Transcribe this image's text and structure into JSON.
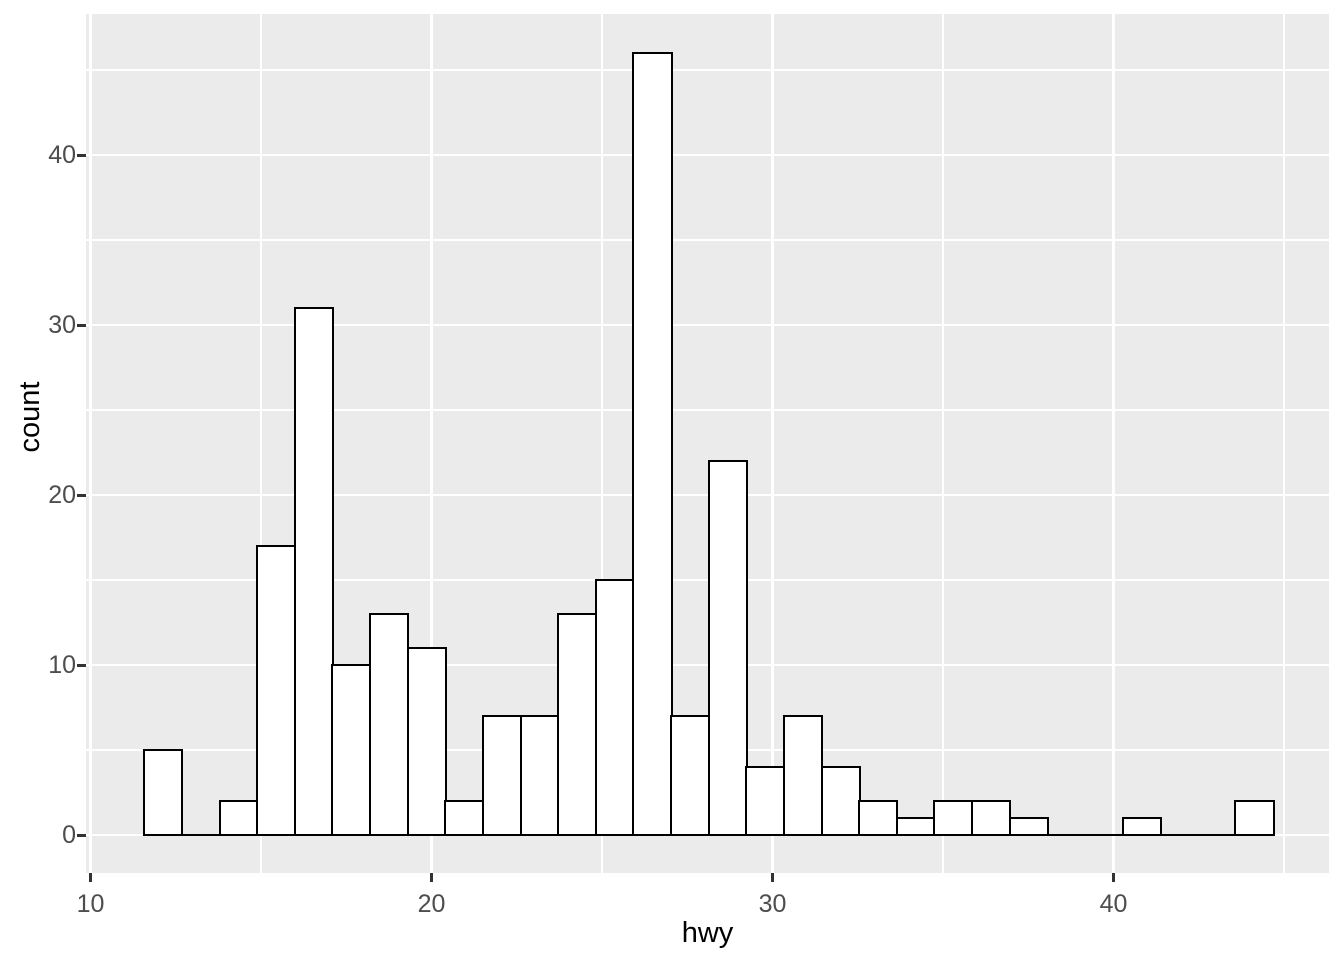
{
  "chart_data": {
    "type": "bar",
    "subtype": "histogram",
    "title": "",
    "xlabel": "hwy",
    "ylabel": "count",
    "x_ticks": [
      10,
      20,
      30,
      40
    ],
    "y_ticks": [
      0,
      10,
      20,
      30,
      40
    ],
    "x_minor_gridlines": [
      15,
      25,
      35,
      45
    ],
    "y_minor_gridlines": [
      5,
      15,
      25,
      35,
      45
    ],
    "xlim": [
      9.93,
      46.35
    ],
    "ylim": [
      -2.3,
      48.3
    ],
    "grid": "on",
    "legend": "none",
    "total_count": 234,
    "bins": {
      "n_bins": 30,
      "start": 11.586,
      "binwidth": 1.1034,
      "counts": [
        5,
        0,
        2,
        17,
        31,
        10,
        13,
        11,
        2,
        7,
        7,
        13,
        15,
        46,
        7,
        22,
        4,
        7,
        4,
        2,
        1,
        2,
        2,
        1,
        0,
        0,
        1,
        0,
        0,
        2
      ]
    },
    "bars": [
      {
        "x0": 11.59,
        "x1": 12.69,
        "count": 5
      },
      {
        "x0": 12.69,
        "x1": 13.79,
        "count": 0
      },
      {
        "x0": 13.79,
        "x1": 14.9,
        "count": 2
      },
      {
        "x0": 14.9,
        "x1": 16.0,
        "count": 17
      },
      {
        "x0": 16.0,
        "x1": 17.1,
        "count": 31
      },
      {
        "x0": 17.1,
        "x1": 18.21,
        "count": 10
      },
      {
        "x0": 18.21,
        "x1": 19.31,
        "count": 13
      },
      {
        "x0": 19.31,
        "x1": 20.41,
        "count": 11
      },
      {
        "x0": 20.41,
        "x1": 21.52,
        "count": 2
      },
      {
        "x0": 21.52,
        "x1": 22.62,
        "count": 7
      },
      {
        "x0": 22.62,
        "x1": 23.72,
        "count": 7
      },
      {
        "x0": 23.72,
        "x1": 24.83,
        "count": 13
      },
      {
        "x0": 24.83,
        "x1": 25.93,
        "count": 15
      },
      {
        "x0": 25.93,
        "x1": 27.03,
        "count": 46
      },
      {
        "x0": 27.03,
        "x1": 28.14,
        "count": 7
      },
      {
        "x0": 28.14,
        "x1": 29.24,
        "count": 22
      },
      {
        "x0": 29.24,
        "x1": 30.34,
        "count": 4
      },
      {
        "x0": 30.34,
        "x1": 31.45,
        "count": 7
      },
      {
        "x0": 31.45,
        "x1": 32.55,
        "count": 4
      },
      {
        "x0": 32.55,
        "x1": 33.66,
        "count": 2
      },
      {
        "x0": 33.66,
        "x1": 34.76,
        "count": 1
      },
      {
        "x0": 34.76,
        "x1": 35.86,
        "count": 2
      },
      {
        "x0": 35.86,
        "x1": 36.97,
        "count": 2
      },
      {
        "x0": 36.97,
        "x1": 38.07,
        "count": 1
      },
      {
        "x0": 38.07,
        "x1": 39.17,
        "count": 0
      },
      {
        "x0": 39.17,
        "x1": 40.28,
        "count": 0
      },
      {
        "x0": 40.28,
        "x1": 41.38,
        "count": 1
      },
      {
        "x0": 41.38,
        "x1": 42.48,
        "count": 0
      },
      {
        "x0": 42.48,
        "x1": 43.59,
        "count": 0
      },
      {
        "x0": 43.59,
        "x1": 44.69,
        "count": 2
      }
    ],
    "colors": {
      "plot_background": "#ffffff",
      "panel_background": "#ebebeb",
      "gridline": "#ffffff",
      "bar_fill": "#ffffff",
      "bar_stroke": "#000000",
      "tick_mark": "#333333",
      "tick_label": "#4d4d4d",
      "axis_title": "#000000"
    }
  }
}
